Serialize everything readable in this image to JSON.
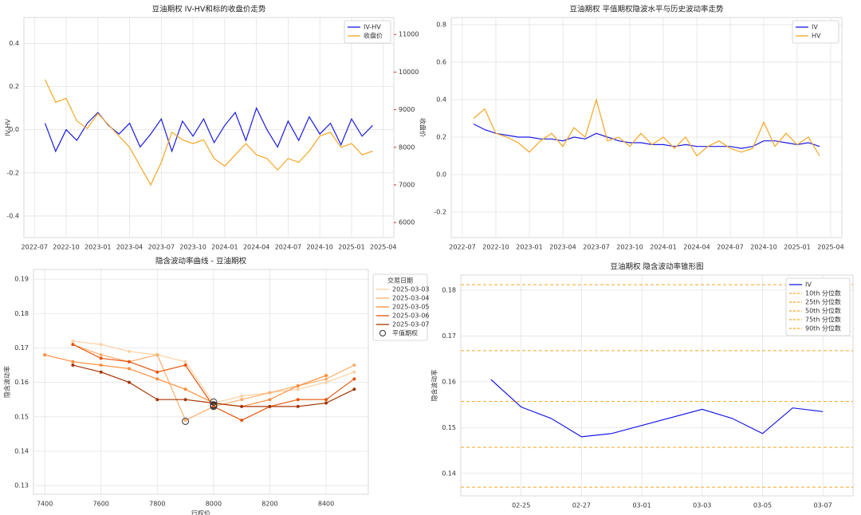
{
  "chart_data": [
    {
      "type": "line",
      "title": "豆油期权 IV-HV和标的收盘价走势",
      "ylabel": "IV-HV",
      "y2label": "收盘价",
      "legend": "upper right",
      "grid": true,
      "x": [
        "2022-08",
        "2022-09",
        "2022-10",
        "2022-11",
        "2022-12",
        "2023-01",
        "2023-02",
        "2023-03",
        "2023-04",
        "2023-05",
        "2023-06",
        "2023-07",
        "2023-08",
        "2023-09",
        "2023-10",
        "2023-11",
        "2023-12",
        "2024-01",
        "2024-02",
        "2024-03",
        "2024-04",
        "2024-05",
        "2024-06",
        "2024-07",
        "2024-08",
        "2024-09",
        "2024-10",
        "2024-11",
        "2024-12",
        "2025-01",
        "2025-02",
        "2025-03"
      ],
      "xlim": [
        "2022-06",
        "2025-05"
      ],
      "xticks": [
        "2022-07",
        "2022-10",
        "2023-01",
        "2023-04",
        "2023-07",
        "2023-10",
        "2024-01",
        "2024-04",
        "2024-07",
        "2024-10",
        "2025-01",
        "2025-04"
      ],
      "ylim": [
        -0.5,
        0.52
      ],
      "yticks": [
        -0.4,
        -0.2,
        {
          "value": 0,
          "label": "0.0"
        },
        0.2,
        0.4
      ],
      "y2lim": [
        5600,
        11450
      ],
      "y2ticks": [
        6000,
        7000,
        8000,
        9000,
        10000,
        11000
      ],
      "series": [
        {
          "name": "IV-HV",
          "color": "#1a1ae6",
          "values": [
            0.03,
            -0.1,
            0.0,
            -0.05,
            0.03,
            0.08,
            0.02,
            -0.02,
            0.03,
            -0.08,
            -0.02,
            0.05,
            -0.1,
            0.04,
            -0.03,
            0.05,
            -0.06,
            0.02,
            0.08,
            -0.05,
            0.1,
            0.0,
            -0.08,
            0.04,
            -0.05,
            0.06,
            -0.02,
            0.03,
            -0.07,
            0.05,
            -0.03,
            0.02
          ]
        },
        {
          "name": "收盘价",
          "color": "#f5a623",
          "axis": "y2",
          "values": [
            9800,
            9200,
            9300,
            8700,
            8500,
            8900,
            8600,
            8300,
            8000,
            7500,
            7000,
            7600,
            8400,
            8200,
            8100,
            8200,
            7700,
            7500,
            7800,
            8100,
            7800,
            7700,
            7400,
            7700,
            7600,
            7900,
            8300,
            8400,
            8000,
            8100,
            7800,
            7900
          ]
        }
      ]
    },
    {
      "type": "line",
      "title": "豆油期权 平值期权隐波水平与历史波动率走势",
      "legend": "upper right",
      "grid": true,
      "x": [
        "2022-08",
        "2022-09",
        "2022-10",
        "2022-11",
        "2022-12",
        "2023-01",
        "2023-02",
        "2023-03",
        "2023-04",
        "2023-05",
        "2023-06",
        "2023-07",
        "2023-08",
        "2023-09",
        "2023-10",
        "2023-11",
        "2023-12",
        "2024-01",
        "2024-02",
        "2024-03",
        "2024-04",
        "2024-05",
        "2024-06",
        "2024-07",
        "2024-08",
        "2024-09",
        "2024-10",
        "2024-11",
        "2024-12",
        "2025-01",
        "2025-02",
        "2025-03"
      ],
      "xlim": [
        "2022-06",
        "2025-05"
      ],
      "xticks": [
        "2022-07",
        "2022-10",
        "2023-01",
        "2023-04",
        "2023-07",
        "2023-10",
        "2024-01",
        "2024-04",
        "2024-07",
        "2024-10",
        "2025-01",
        "2025-04"
      ],
      "ylim": [
        -0.336,
        0.838
      ],
      "yticks": [
        -0.2,
        {
          "value": 0,
          "label": "0.0"
        },
        0.2,
        0.4,
        0.6,
        0.8
      ],
      "series": [
        {
          "name": "IV",
          "color": "#1a1ae6",
          "values": [
            0.27,
            0.24,
            0.22,
            0.21,
            0.2,
            0.2,
            0.19,
            0.19,
            0.18,
            0.2,
            0.19,
            0.22,
            0.2,
            0.18,
            0.17,
            0.17,
            0.16,
            0.16,
            0.15,
            0.16,
            0.15,
            0.15,
            0.15,
            0.15,
            0.14,
            0.15,
            0.18,
            0.18,
            0.17,
            0.16,
            0.17,
            0.15
          ]
        },
        {
          "name": "HV",
          "color": "#f5a623",
          "values": [
            0.3,
            0.35,
            0.22,
            0.2,
            0.17,
            0.12,
            0.18,
            0.22,
            0.15,
            0.25,
            0.2,
            0.4,
            0.18,
            0.2,
            0.15,
            0.22,
            0.16,
            0.2,
            0.14,
            0.2,
            0.1,
            0.15,
            0.18,
            0.14,
            0.12,
            0.14,
            0.28,
            0.15,
            0.22,
            0.16,
            0.2,
            0.1
          ]
        }
      ]
    },
    {
      "type": "line",
      "title": "隐含波动率曲线 - 豆油期权",
      "xlabel": "行权价",
      "ylabel": "隐含波动率",
      "legend": "outside right",
      "legend_title": "交易日期",
      "grid": true,
      "markers": true,
      "x": [
        7400,
        7500,
        7600,
        7700,
        7800,
        7900,
        8000,
        8100,
        8200,
        8300,
        8400,
        8500
      ],
      "xlim": [
        7360,
        8550
      ],
      "xticks": [
        7400,
        7600,
        7800,
        8000,
        8200,
        8400
      ],
      "ylim": [
        0.1275,
        0.1928
      ],
      "yticks": [
        0.13,
        0.14,
        0.15,
        0.16,
        0.17,
        0.18,
        0.19
      ],
      "series": [
        {
          "name": "2025-03-03",
          "color": "#fdd0a2",
          "values": [
            null,
            0.172,
            0.171,
            0.169,
            0.168,
            0.166,
            0.154,
            0.156,
            0.157,
            0.158,
            0.16,
            0.163
          ]
        },
        {
          "name": "2025-03-04",
          "color": "#fdae6b",
          "values": [
            null,
            0.171,
            0.168,
            0.166,
            0.168,
            0.149,
            0.153,
            0.155,
            0.157,
            0.159,
            0.161,
            0.165
          ]
        },
        {
          "name": "2025-03-05",
          "color": "#fd8d3c",
          "values": [
            0.168,
            0.166,
            0.165,
            0.164,
            0.161,
            0.158,
            0.154,
            0.153,
            0.155,
            0.159,
            0.162,
            null
          ]
        },
        {
          "name": "2025-03-06",
          "color": "#e6550d",
          "values": [
            null,
            0.171,
            0.167,
            0.166,
            0.163,
            0.165,
            0.153,
            0.149,
            0.153,
            0.155,
            0.155,
            0.161
          ]
        },
        {
          "name": "2025-03-07",
          "color": "#a63603",
          "values": [
            null,
            0.165,
            0.163,
            0.16,
            0.155,
            0.155,
            0.154,
            0.153,
            0.153,
            0.153,
            0.154,
            0.158
          ]
        }
      ],
      "atm": {
        "name": "平值期权",
        "x": [
          7900,
          8000,
          8000,
          8000,
          8000
        ],
        "values": [
          0.1487,
          0.1543,
          0.1535,
          0.1533,
          0.153
        ]
      }
    },
    {
      "type": "line",
      "title": "豆油期权 隐含波动率锥形图",
      "ylabel": "隐含波动率",
      "legend": "upper right",
      "grid": true,
      "x": [
        "02-24",
        "02-25",
        "02-26",
        "02-27",
        "02-28",
        "03-03",
        "03-04",
        "03-05",
        "03-06",
        "03-07"
      ],
      "xlim": [
        "02-23",
        "03-08"
      ],
      "xticks": [
        "02-25",
        "02-27",
        "03-01",
        "03-03",
        "03-05",
        "03-07"
      ],
      "ylim": [
        0.1351,
        0.1833
      ],
      "yticks": [
        0.14,
        0.15,
        0.16,
        0.17,
        0.18
      ],
      "series": [
        {
          "name": "IV",
          "color": "#1a1ae6",
          "values": [
            0.1605,
            0.1545,
            0.152,
            0.148,
            0.1487,
            0.154,
            0.152,
            0.1487,
            0.1543,
            0.1535
          ]
        }
      ],
      "percentiles": {
        "color": "#f5a623",
        "items": [
          {
            "name": "10th 分位数",
            "value": 0.137
          },
          {
            "name": "25th 分位数",
            "value": 0.1457
          },
          {
            "name": "50th 分位数",
            "value": 0.1557
          },
          {
            "name": "75th 分位数",
            "value": 0.1668
          },
          {
            "name": "90th 分位数",
            "value": 0.1812
          }
        ]
      }
    }
  ]
}
